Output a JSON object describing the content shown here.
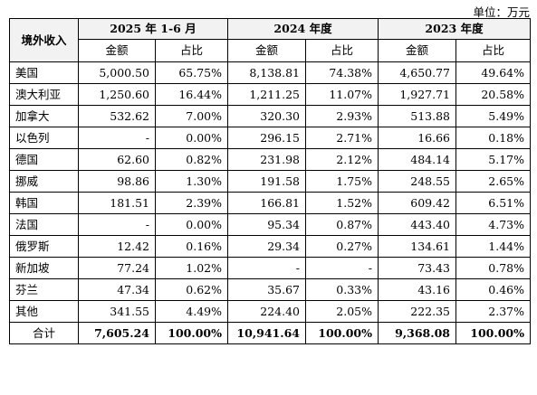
{
  "unit_note": "单位：万元",
  "header": {
    "corner": "境外收入",
    "periods": [
      "2025 年 1-6 月",
      "2024 年度",
      "2023 年度"
    ],
    "amount_label": "金额",
    "ratio_label": "占比"
  },
  "rows": [
    {
      "name": "美国",
      "v": [
        "5,000.50",
        "65.75%",
        "8,138.81",
        "74.38%",
        "4,650.77",
        "49.64%"
      ]
    },
    {
      "name": "澳大利亚",
      "v": [
        "1,250.60",
        "16.44%",
        "1,211.25",
        "11.07%",
        "1,927.71",
        "20.58%"
      ]
    },
    {
      "name": "加拿大",
      "v": [
        "532.62",
        "7.00%",
        "320.30",
        "2.93%",
        "513.88",
        "5.49%"
      ]
    },
    {
      "name": "以色列",
      "v": [
        "-",
        "0.00%",
        "296.15",
        "2.71%",
        "16.66",
        "0.18%"
      ]
    },
    {
      "name": "德国",
      "v": [
        "62.60",
        "0.82%",
        "231.98",
        "2.12%",
        "484.14",
        "5.17%"
      ]
    },
    {
      "name": "挪威",
      "v": [
        "98.86",
        "1.30%",
        "191.58",
        "1.75%",
        "248.55",
        "2.65%"
      ]
    },
    {
      "name": "韩国",
      "v": [
        "181.51",
        "2.39%",
        "166.81",
        "1.52%",
        "609.42",
        "6.51%"
      ]
    },
    {
      "name": "法国",
      "v": [
        "-",
        "0.00%",
        "95.34",
        "0.87%",
        "443.40",
        "4.73%"
      ]
    },
    {
      "name": "俄罗斯",
      "v": [
        "12.42",
        "0.16%",
        "29.34",
        "0.27%",
        "134.61",
        "1.44%"
      ]
    },
    {
      "name": "新加坡",
      "v": [
        "77.24",
        "1.02%",
        "-",
        "-",
        "73.43",
        "0.78%"
      ]
    },
    {
      "name": "芬兰",
      "v": [
        "47.34",
        "0.62%",
        "35.67",
        "0.33%",
        "43.16",
        "0.46%"
      ]
    },
    {
      "name": "其他",
      "v": [
        "341.55",
        "4.49%",
        "224.40",
        "2.05%",
        "222.35",
        "2.37%"
      ]
    }
  ],
  "total": {
    "name": "合计",
    "v": [
      "7,605.24",
      "100.00%",
      "10,941.64",
      "100.00%",
      "9,368.08",
      "100.00%"
    ]
  }
}
